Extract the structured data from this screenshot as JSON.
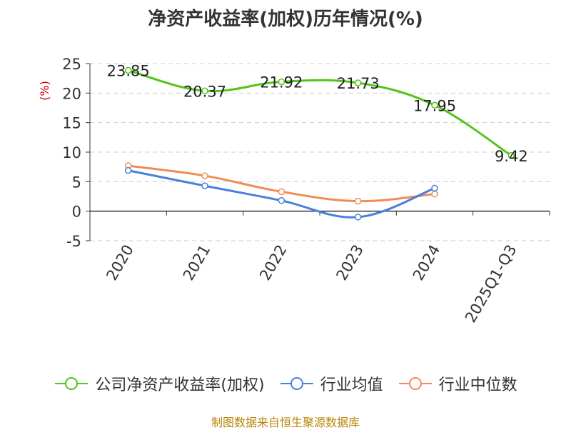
{
  "chart_data": {
    "type": "line",
    "title": "净资产收益率(加权)历年情况(%)",
    "ylabel": "(%)",
    "categories": [
      "2020",
      "2021",
      "2022",
      "2023",
      "2024",
      "2025Q1-Q3"
    ],
    "yticks": [
      25,
      20,
      15,
      10,
      5,
      0,
      -5
    ],
    "ylim": [
      -5,
      25
    ],
    "grid": true,
    "legend_position": "bottom",
    "series": [
      {
        "name": "公司净资产收益率(加权)",
        "color": "#52c41a",
        "values": [
          23.85,
          20.37,
          21.92,
          21.73,
          17.95,
          9.42
        ],
        "labels": [
          "23.85",
          "20.37",
          "21.92",
          "21.73",
          "17.95",
          "9.42"
        ]
      },
      {
        "name": "行业均值",
        "color": "#4a7fdc",
        "values": [
          6.9,
          4.3,
          1.8,
          -1.0,
          3.9,
          null
        ]
      },
      {
        "name": "行业中位数",
        "color": "#f28b54",
        "values": [
          7.7,
          6.0,
          3.3,
          1.7,
          2.9,
          null
        ]
      }
    ]
  },
  "source": "制图数据来自恒生聚源数据库"
}
